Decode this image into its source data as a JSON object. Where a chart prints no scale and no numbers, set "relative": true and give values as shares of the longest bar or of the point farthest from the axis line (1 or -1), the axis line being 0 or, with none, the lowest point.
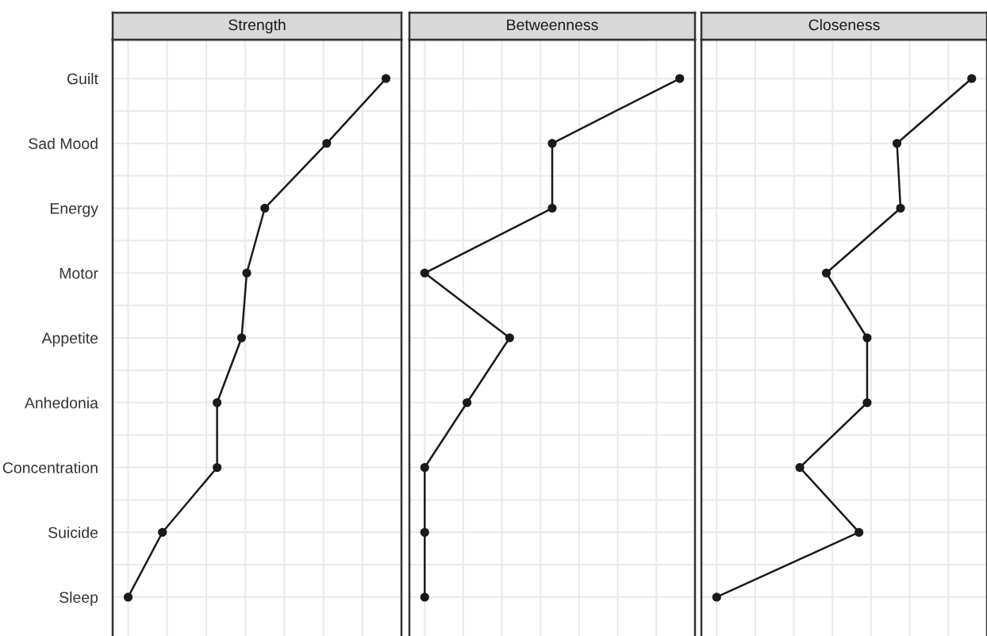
{
  "chart_data": [
    {
      "type": "line",
      "title": "Strength",
      "relative": true,
      "categories": [
        "Guilt",
        "Sad Mood",
        "Energy",
        "Motor",
        "Appetite",
        "Anhedonia",
        "Concentration",
        "Suicide",
        "Sleep"
      ],
      "series": [
        {
          "color": "#1a1a1a",
          "values": [
            1,
            0.77,
            0.53,
            0.46,
            0.44,
            0.345,
            0.345,
            0.133,
            0
          ]
        }
      ],
      "marker": "circle",
      "line_style": "solid",
      "grid": true,
      "tick_labels": "y",
      "orientation": "horizontal"
    },
    {
      "type": "line",
      "title": "Betweenness",
      "relative": true,
      "categories": [
        null,
        null,
        null,
        null,
        null,
        null,
        null,
        null,
        null
      ],
      "series": [
        {
          "color": "#1a1a1a",
          "values": [
            1,
            0.5,
            0.5,
            0,
            0.333,
            0.166,
            0,
            0,
            0
          ]
        }
      ],
      "marker": "circle",
      "line_style": "solid",
      "grid": true,
      "tick_labels": false,
      "orientation": "horizontal"
    },
    {
      "type": "line",
      "title": "Closeness",
      "relative": true,
      "categories": [
        null,
        null,
        null,
        null,
        null,
        null,
        null,
        null,
        null
      ],
      "series": [
        {
          "color": "#1a1a1a",
          "values": [
            1,
            0.707,
            0.721,
            0.43,
            0.59,
            0.59,
            0.326,
            0.558,
            0
          ]
        }
      ],
      "marker": "circle",
      "line_style": "solid",
      "grid": true,
      "tick_labels": false,
      "orientation": "horizontal"
    }
  ]
}
